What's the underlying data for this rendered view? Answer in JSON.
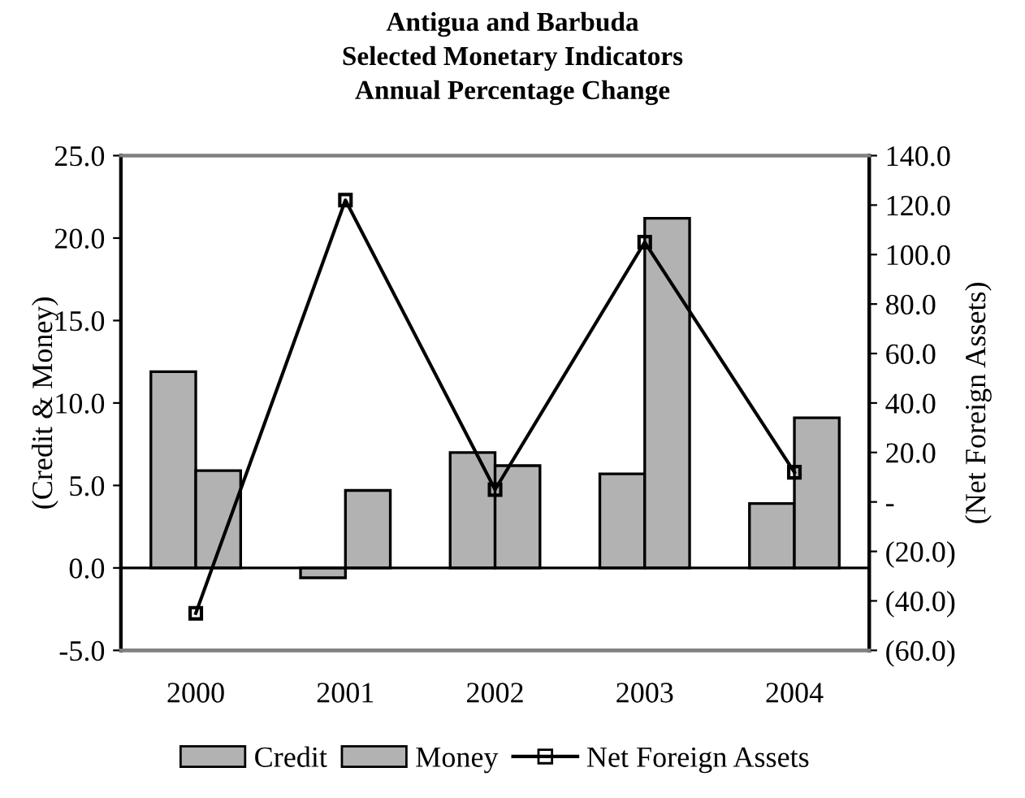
{
  "chart_data": {
    "type": "bar",
    "title": "Antigua and Barbuda\nSelected Monetary Indicators\nAnnual Percentage Change",
    "ylabel": "(Credit & Money)",
    "y2label": "(Net Foreign Assets)",
    "categories": [
      "2000",
      "2001",
      "2002",
      "2003",
      "2004"
    ],
    "series": [
      {
        "name": "Credit",
        "color": "#b2b2b2",
        "values": [
          11.9,
          -0.6,
          7.0,
          5.7,
          3.9
        ]
      },
      {
        "name": "Money",
        "color": "#b2b2b2",
        "values": [
          5.9,
          4.7,
          6.2,
          21.2,
          9.1
        ]
      },
      {
        "name": "Net Foreign Assets",
        "type": "line",
        "axis": "y2",
        "color": "#000000",
        "marker": "square",
        "values": [
          -45,
          122,
          5,
          105,
          12
        ]
      }
    ],
    "ylim": [
      -5,
      25
    ],
    "yticks": [
      {
        "value": -5,
        "label": "-5.0"
      },
      {
        "value": 0,
        "label": "0.0"
      },
      {
        "value": 5,
        "label": "5.0"
      },
      {
        "value": 10,
        "label": "10.0"
      },
      {
        "value": 15,
        "label": "15.0"
      },
      {
        "value": 20,
        "label": "20.0"
      },
      {
        "value": 25,
        "label": "25.0"
      }
    ],
    "y2lim": [
      -60,
      140
    ],
    "y2ticks": [
      {
        "value": -60,
        "label": "(60.0)"
      },
      {
        "value": -40,
        "label": "(40.0)"
      },
      {
        "value": -20,
        "label": "(20.0)"
      },
      {
        "value": 0,
        "label": "-"
      },
      {
        "value": 20,
        "label": "20.0"
      },
      {
        "value": 40,
        "label": "40.0"
      },
      {
        "value": 60,
        "label": "60.0"
      },
      {
        "value": 80,
        "label": "80.0"
      },
      {
        "value": 100,
        "label": "100.0"
      },
      {
        "value": 120,
        "label": "120.0"
      },
      {
        "value": 140,
        "label": "140.0"
      }
    ],
    "legend": "bottom"
  }
}
